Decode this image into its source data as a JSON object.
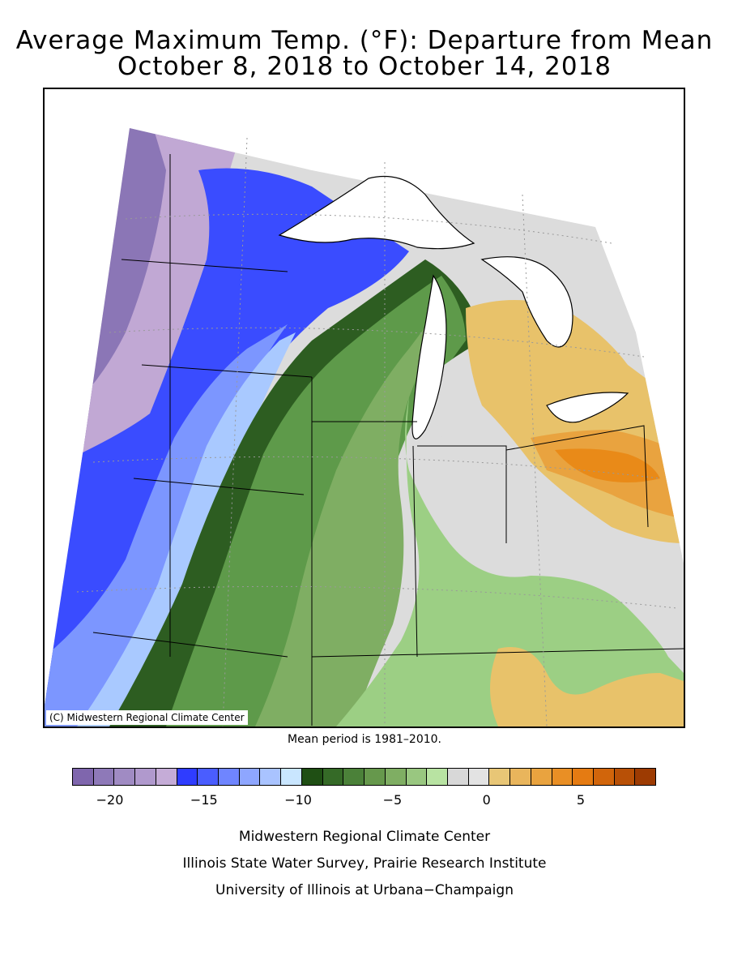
{
  "title_line1": "Average Maximum Temp. (°F): Departure from Mean",
  "title_line2": "October 8, 2018 to October 14, 2018",
  "map": {
    "copyright": "(C) Midwestern Regional Climate Center",
    "region": "Upper Midwest / Great Lakes",
    "zones": [
      {
        "color": "#8b76b6",
        "departure": -20
      },
      {
        "color": "#c1a8d4",
        "departure": -18
      },
      {
        "color": "#3a4cff",
        "departure": -15
      },
      {
        "color": "#a9c9ff",
        "departure": -11
      },
      {
        "color": "#2d5d21",
        "departure": -8
      },
      {
        "color": "#5e9a4a",
        "departure": -6
      },
      {
        "color": "#9ccf84",
        "departure": -3
      },
      {
        "color": "#dcdcdc",
        "departure": 0
      },
      {
        "color": "#e8c26a",
        "departure": 2
      },
      {
        "color": "#e98a18",
        "departure": 6
      }
    ]
  },
  "mean_period": "Mean period is 1981–2010.",
  "legend": {
    "colors": [
      "#7f66ad",
      "#8e79b8",
      "#a08bc3",
      "#b099cd",
      "#c5acd7",
      "#2f3cff",
      "#4a5dff",
      "#6f85ff",
      "#8ea6ff",
      "#a9c3ff",
      "#c9e6ff",
      "#1f4f14",
      "#356a27",
      "#4b8139",
      "#66984c",
      "#7fae63",
      "#99c780",
      "#b8e3a2",
      "#d8d8d8",
      "#e3e3e3",
      "#e8c676",
      "#e9b55c",
      "#e9a33f",
      "#e98f25",
      "#e57b12",
      "#d1650b",
      "#b85006",
      "#9d3b02"
    ],
    "ticks": [
      {
        "label": "−20",
        "value": -20
      },
      {
        "label": "−15",
        "value": -15
      },
      {
        "label": "−10",
        "value": -10
      },
      {
        "label": "−5",
        "value": -5
      },
      {
        "label": "0",
        "value": 0
      },
      {
        "label": "5",
        "value": 5
      }
    ]
  },
  "footer": {
    "line1": "Midwestern Regional Climate Center",
    "line2": "Illinois State Water Survey, Prairie Research Institute",
    "line3": "University of Illinois at Urbana−Champaign"
  }
}
